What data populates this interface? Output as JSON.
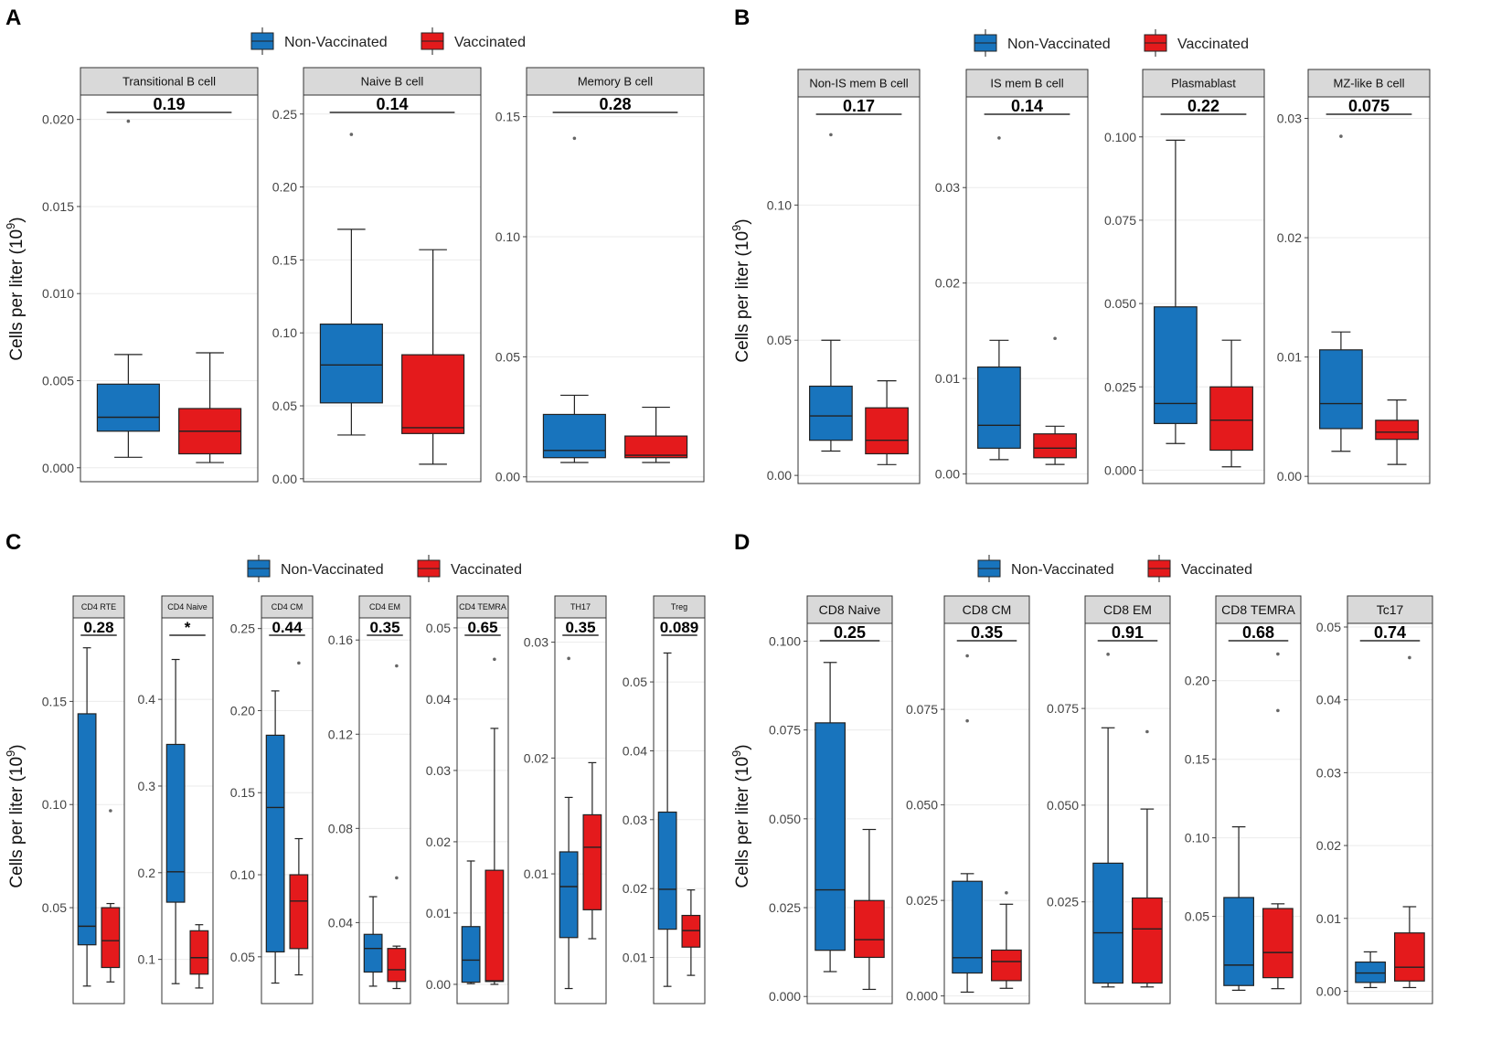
{
  "legend": {
    "non_vaccinated": "Non-Vaccinated",
    "vaccinated": "Vaccinated"
  },
  "colors": {
    "non_vaccinated": "#1874bd",
    "vaccinated": "#e41a1c",
    "strip": "#d9d9d9",
    "grid": "#ebebeb"
  },
  "y_axis_label": "Cells per liter (10^9)",
  "chart_data": [
    {
      "panel": "A",
      "type": "boxplot",
      "ylabel": "Cells per liter (10^9)",
      "groups": [
        "Non-Vaccinated",
        "Vaccinated"
      ],
      "facets": [
        {
          "title": "Transitional B cell",
          "p": "0.19",
          "ylim": [
            -0.0008,
            0.0214
          ],
          "ticks": [
            0.0,
            0.005,
            0.01,
            0.015,
            0.02
          ],
          "tick_labels": [
            "0.000",
            "0.005",
            "0.010",
            "0.015",
            "0.020"
          ],
          "boxes": [
            {
              "group": "Non-Vaccinated",
              "min": 0.0006,
              "q1": 0.0021,
              "median": 0.0029,
              "q3": 0.0048,
              "max": 0.0065,
              "outliers": [
                0.0199
              ]
            },
            {
              "group": "Vaccinated",
              "min": 0.0003,
              "q1": 0.0008,
              "median": 0.0021,
              "q3": 0.0034,
              "max": 0.0066,
              "outliers": []
            }
          ]
        },
        {
          "title": "Naive B cell",
          "p": "0.14",
          "ylim": [
            -0.002,
            0.263
          ],
          "ticks": [
            0.0,
            0.05,
            0.1,
            0.15,
            0.2,
            0.25
          ],
          "tick_labels": [
            "0.00",
            "0.05",
            "0.10",
            "0.15",
            "0.20",
            "0.25"
          ],
          "boxes": [
            {
              "group": "Non-Vaccinated",
              "min": 0.03,
              "q1": 0.052,
              "median": 0.078,
              "q3": 0.106,
              "max": 0.171,
              "outliers": [
                0.236
              ]
            },
            {
              "group": "Vaccinated",
              "min": 0.01,
              "q1": 0.031,
              "median": 0.035,
              "q3": 0.085,
              "max": 0.157,
              "outliers": []
            }
          ]
        },
        {
          "title": "Memory B cell",
          "p": "0.28",
          "ylim": [
            -0.002,
            0.159
          ],
          "ticks": [
            0.0,
            0.05,
            0.1,
            0.15
          ],
          "tick_labels": [
            "0.00",
            "0.05",
            "0.10",
            "0.15"
          ],
          "boxes": [
            {
              "group": "Non-Vaccinated",
              "min": 0.006,
              "q1": 0.008,
              "median": 0.011,
              "q3": 0.026,
              "max": 0.034,
              "outliers": [
                0.141
              ]
            },
            {
              "group": "Vaccinated",
              "min": 0.006,
              "q1": 0.008,
              "median": 0.009,
              "q3": 0.017,
              "max": 0.029,
              "outliers": []
            }
          ]
        }
      ]
    },
    {
      "panel": "B",
      "type": "boxplot",
      "ylabel": "Cells per liter (10^9)",
      "groups": [
        "Non-Vaccinated",
        "Vaccinated"
      ],
      "facets": [
        {
          "title": "Non-IS mem B cell",
          "p": "0.17",
          "ylim": [
            -0.003,
            0.14
          ],
          "ticks": [
            0.0,
            0.05,
            0.1
          ],
          "tick_labels": [
            "0.00",
            "0.05",
            "0.10"
          ],
          "boxes": [
            {
              "group": "Non-Vaccinated",
              "min": 0.009,
              "q1": 0.013,
              "median": 0.022,
              "q3": 0.033,
              "max": 0.05,
              "outliers": [
                0.126
              ]
            },
            {
              "group": "Vaccinated",
              "min": 0.004,
              "q1": 0.008,
              "median": 0.013,
              "q3": 0.025,
              "max": 0.035,
              "outliers": []
            }
          ]
        },
        {
          "title": "IS mem B cell",
          "p": "0.14",
          "ylim": [
            -0.001,
            0.0395
          ],
          "ticks": [
            0.0,
            0.01,
            0.02,
            0.03
          ],
          "tick_labels": [
            "0.00",
            "0.01",
            "0.02",
            "0.03"
          ],
          "boxes": [
            {
              "group": "Non-Vaccinated",
              "min": 0.0015,
              "q1": 0.0027,
              "median": 0.0051,
              "q3": 0.0112,
              "max": 0.014,
              "outliers": [
                0.0352
              ]
            },
            {
              "group": "Vaccinated",
              "min": 0.001,
              "q1": 0.0017,
              "median": 0.0027,
              "q3": 0.0042,
              "max": 0.005,
              "outliers": [
                0.0142
              ]
            }
          ]
        },
        {
          "title": "Plasmablast",
          "p": "0.22",
          "ylim": [
            -0.004,
            0.112
          ],
          "ticks": [
            0.0,
            0.025,
            0.05,
            0.075,
            0.1
          ],
          "tick_labels": [
            "0.000",
            "0.025",
            "0.050",
            "0.075",
            "0.100"
          ],
          "boxes": [
            {
              "group": "Non-Vaccinated",
              "min": 0.008,
              "q1": 0.014,
              "median": 0.02,
              "q3": 0.049,
              "max": 0.099,
              "outliers": []
            },
            {
              "group": "Vaccinated",
              "min": 0.001,
              "q1": 0.006,
              "median": 0.015,
              "q3": 0.025,
              "max": 0.039,
              "outliers": []
            }
          ]
        },
        {
          "title": "MZ-like B cell",
          "p": "0.075",
          "ylim": [
            -0.0006,
            0.0318
          ],
          "ticks": [
            0.0,
            0.01,
            0.02,
            0.03
          ],
          "tick_labels": [
            "0.00",
            "0.01",
            "0.02",
            "0.03"
          ],
          "boxes": [
            {
              "group": "Non-Vaccinated",
              "min": 0.0021,
              "q1": 0.004,
              "median": 0.0061,
              "q3": 0.0106,
              "max": 0.0121,
              "outliers": [
                0.0285
              ]
            },
            {
              "group": "Vaccinated",
              "min": 0.001,
              "q1": 0.0031,
              "median": 0.0037,
              "q3": 0.0047,
              "max": 0.0064,
              "outliers": []
            }
          ]
        }
      ]
    },
    {
      "panel": "C",
      "type": "boxplot",
      "ylabel": "Cells per liter (10^9)",
      "groups": [
        "Non-Vaccinated",
        "Vaccinated"
      ],
      "facets": [
        {
          "title": "CD4 RTE",
          "p": "0.28",
          "ylim": [
            0.0035,
            0.1905
          ],
          "ticks": [
            0.05,
            0.1,
            0.15
          ],
          "tick_labels": [
            "0.05",
            "0.10",
            "0.15"
          ],
          "boxes": [
            {
              "group": "Non-Vaccinated",
              "min": 0.012,
              "q1": 0.032,
              "median": 0.041,
              "q3": 0.144,
              "max": 0.176,
              "outliers": []
            },
            {
              "group": "Vaccinated",
              "min": 0.014,
              "q1": 0.021,
              "median": 0.034,
              "q3": 0.05,
              "max": 0.052,
              "outliers": [
                0.097
              ]
            }
          ]
        },
        {
          "title": "CD4 Naive",
          "p": "*",
          "ylim": [
            0.049,
            0.494
          ],
          "ticks": [
            0.1,
            0.2,
            0.3,
            0.4
          ],
          "tick_labels": [
            "0.1",
            "0.2",
            "0.3",
            "0.4"
          ],
          "boxes": [
            {
              "group": "Non-Vaccinated",
              "min": 0.072,
              "q1": 0.166,
              "median": 0.201,
              "q3": 0.348,
              "max": 0.446,
              "outliers": []
            },
            {
              "group": "Vaccinated",
              "min": 0.067,
              "q1": 0.083,
              "median": 0.102,
              "q3": 0.133,
              "max": 0.14,
              "outliers": []
            }
          ]
        },
        {
          "title": "CD4 CM",
          "p": "0.44",
          "ylim": [
            0.0215,
            0.2565
          ],
          "ticks": [
            0.05,
            0.1,
            0.15,
            0.2,
            0.25
          ],
          "tick_labels": [
            "0.05",
            "0.10",
            "0.15",
            "0.20",
            "0.25"
          ],
          "boxes": [
            {
              "group": "Non-Vaccinated",
              "min": 0.034,
              "q1": 0.053,
              "median": 0.141,
              "q3": 0.185,
              "max": 0.212,
              "outliers": []
            },
            {
              "group": "Vaccinated",
              "min": 0.039,
              "q1": 0.055,
              "median": 0.084,
              "q3": 0.1,
              "max": 0.122,
              "outliers": [
                0.229
              ]
            }
          ]
        },
        {
          "title": "CD4 EM",
          "p": "0.35",
          "ylim": [
            0.0056,
            0.1694
          ],
          "ticks": [
            0.04,
            0.08,
            0.12,
            0.16
          ],
          "tick_labels": [
            "0.04",
            "0.08",
            "0.12",
            "0.16"
          ],
          "boxes": [
            {
              "group": "Non-Vaccinated",
              "min": 0.013,
              "q1": 0.019,
              "median": 0.029,
              "q3": 0.035,
              "max": 0.051,
              "outliers": []
            },
            {
              "group": "Vaccinated",
              "min": 0.012,
              "q1": 0.015,
              "median": 0.02,
              "q3": 0.029,
              "max": 0.03,
              "outliers": [
                0.059,
                0.149
              ]
            }
          ]
        },
        {
          "title": "CD4 TEMRA",
          "p": "0.65",
          "ylim": [
            -0.0027,
            0.0514
          ],
          "ticks": [
            0.0,
            0.01,
            0.02,
            0.03,
            0.04,
            0.05
          ],
          "tick_labels": [
            "0.00",
            "0.01",
            "0.02",
            "0.03",
            "0.04",
            "0.05"
          ],
          "boxes": [
            {
              "group": "Non-Vaccinated",
              "min": 0.0001,
              "q1": 0.0003,
              "median": 0.0034,
              "q3": 0.0081,
              "max": 0.0173,
              "outliers": []
            },
            {
              "group": "Vaccinated",
              "min": 0.0,
              "q1": 0.0004,
              "median": 0.0005,
              "q3": 0.016,
              "max": 0.0359,
              "outliers": [
                0.0456
              ]
            }
          ]
        },
        {
          "title": "TH17",
          "p": "0.35",
          "ylim": [
            -0.0012,
            0.0321
          ],
          "ticks": [
            0.01,
            0.02,
            0.03
          ],
          "tick_labels": [
            "0.01",
            "0.02",
            "0.03"
          ],
          "boxes": [
            {
              "group": "Non-Vaccinated",
              "min": 0.0001,
              "q1": 0.0045,
              "median": 0.0089,
              "q3": 0.0119,
              "max": 0.0166,
              "outliers": [
                0.0286
              ]
            },
            {
              "group": "Vaccinated",
              "min": 0.0044,
              "q1": 0.0069,
              "median": 0.0123,
              "q3": 0.0151,
              "max": 0.0196,
              "outliers": []
            }
          ]
        },
        {
          "title": "Treg",
          "p": "0.089",
          "ylim": [
            0.0033,
            0.0593
          ],
          "ticks": [
            0.01,
            0.02,
            0.03,
            0.04,
            0.05
          ],
          "tick_labels": [
            "0.01",
            "0.02",
            "0.03",
            "0.04",
            "0.05"
          ],
          "boxes": [
            {
              "group": "Non-Vaccinated",
              "min": 0.0058,
              "q1": 0.0141,
              "median": 0.0199,
              "q3": 0.0311,
              "max": 0.0542,
              "outliers": []
            },
            {
              "group": "Vaccinated",
              "min": 0.0074,
              "q1": 0.0115,
              "median": 0.0139,
              "q3": 0.0161,
              "max": 0.0198,
              "outliers": []
            }
          ]
        }
      ]
    },
    {
      "panel": "D",
      "type": "boxplot",
      "ylabel": "Cells per liter (10^9)",
      "groups": [
        "Non-Vaccinated",
        "Vaccinated"
      ],
      "facets": [
        {
          "title": "CD8 Naive",
          "p": "0.25",
          "ylim": [
            -0.002,
            0.105
          ],
          "ticks": [
            0.0,
            0.025,
            0.05,
            0.075,
            0.1
          ],
          "tick_labels": [
            "0.000",
            "0.025",
            "0.050",
            "0.075",
            "0.100"
          ],
          "boxes": [
            {
              "group": "Non-Vaccinated",
              "min": 0.007,
              "q1": 0.013,
              "median": 0.03,
              "q3": 0.077,
              "max": 0.094,
              "outliers": []
            },
            {
              "group": "Vaccinated",
              "min": 0.002,
              "q1": 0.011,
              "median": 0.016,
              "q3": 0.027,
              "max": 0.047,
              "outliers": []
            }
          ]
        },
        {
          "title": "CD8 CM",
          "p": "0.35",
          "ylim": [
            -0.002,
            0.0975
          ],
          "ticks": [
            0.0,
            0.025,
            0.05,
            0.075
          ],
          "tick_labels": [
            "0.000",
            "0.025",
            "0.050",
            "0.075"
          ],
          "boxes": [
            {
              "group": "Non-Vaccinated",
              "min": 0.001,
              "q1": 0.006,
              "median": 0.01,
              "q3": 0.03,
              "max": 0.032,
              "outliers": [
                0.072,
                0.089
              ]
            },
            {
              "group": "Vaccinated",
              "min": 0.002,
              "q1": 0.004,
              "median": 0.009,
              "q3": 0.012,
              "max": 0.024,
              "outliers": [
                0.027
              ]
            }
          ]
        },
        {
          "title": "CD8 EM",
          "p": "0.91",
          "ylim": [
            -0.0013,
            0.097
          ],
          "ticks": [
            0.025,
            0.05,
            0.075
          ],
          "tick_labels": [
            "0.025",
            "0.050",
            "0.075"
          ],
          "boxes": [
            {
              "group": "Non-Vaccinated",
              "min": 0.003,
              "q1": 0.004,
              "median": 0.017,
              "q3": 0.035,
              "max": 0.07,
              "outliers": [
                0.089
              ]
            },
            {
              "group": "Vaccinated",
              "min": 0.003,
              "q1": 0.004,
              "median": 0.018,
              "q3": 0.026,
              "max": 0.049,
              "outliers": [
                0.069
              ]
            }
          ]
        },
        {
          "title": "CD8 TEMRA",
          "p": "0.68",
          "ylim": [
            -0.0055,
            0.2365
          ],
          "ticks": [
            0.05,
            0.1,
            0.15,
            0.2
          ],
          "tick_labels": [
            "0.05",
            "0.10",
            "0.15",
            "0.20"
          ],
          "boxes": [
            {
              "group": "Non-Vaccinated",
              "min": 0.003,
              "q1": 0.006,
              "median": 0.019,
              "q3": 0.062,
              "max": 0.107,
              "outliers": []
            },
            {
              "group": "Vaccinated",
              "min": 0.004,
              "q1": 0.011,
              "median": 0.027,
              "q3": 0.055,
              "max": 0.058,
              "outliers": [
                0.181,
                0.217
              ]
            }
          ]
        },
        {
          "title": "Tc17",
          "p": "0.74",
          "ylim": [
            -0.0017,
            0.0505
          ],
          "ticks": [
            0.0,
            0.01,
            0.02,
            0.03,
            0.04,
            0.05
          ],
          "tick_labels": [
            "0.00",
            "0.01",
            "0.02",
            "0.03",
            "0.04",
            "0.05"
          ],
          "boxes": [
            {
              "group": "Non-Vaccinated",
              "min": 0.0005,
              "q1": 0.0012,
              "median": 0.0025,
              "q3": 0.004,
              "max": 0.0054,
              "outliers": []
            },
            {
              "group": "Vaccinated",
              "min": 0.0005,
              "q1": 0.0014,
              "median": 0.0033,
              "q3": 0.008,
              "max": 0.0116,
              "outliers": [
                0.0458
              ]
            }
          ]
        }
      ]
    }
  ]
}
